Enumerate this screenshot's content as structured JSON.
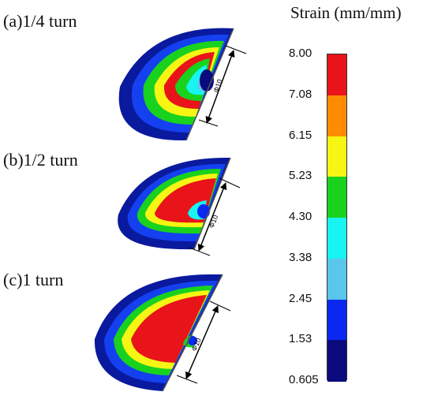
{
  "labels": {
    "a": "(a)1/4 turn",
    "b": "(b)1/2 turn",
    "c": "(c)1 turn"
  },
  "dimension_label": "Φ10",
  "colorbar": {
    "title": "Strain (mm/mm)",
    "ticks": [
      "8.00",
      "7.08",
      "6.15",
      "5.23",
      "4.30",
      "3.38",
      "2.45",
      "1.53",
      "0.605"
    ],
    "colors": [
      "#e8141a",
      "#ff8c00",
      "#f6f514",
      "#19d21e",
      "#17f4f1",
      "#5bc6ec",
      "#0b28f0",
      "#0a0a7e"
    ]
  }
}
